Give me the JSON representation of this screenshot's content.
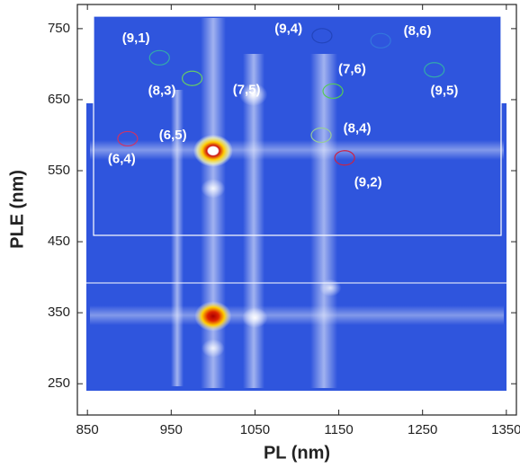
{
  "chart_data": {
    "type": "ple-map",
    "xlabel": "PL (nm)",
    "ylabel": "PLE (nm)",
    "xlim": [
      838,
      1362
    ],
    "ylim": [
      206,
      784
    ],
    "xticks": [
      850,
      950,
      1050,
      1150,
      1250,
      1350
    ],
    "yticks": [
      250,
      350,
      450,
      550,
      650,
      750
    ],
    "peaks": [
      {
        "x": 1000,
        "y": 578,
        "intensity": 1.0
      },
      {
        "x": 1048,
        "y": 657,
        "intensity": 0.55
      },
      {
        "x": 1000,
        "y": 345,
        "intensity": 0.9
      },
      {
        "x": 1050,
        "y": 343,
        "intensity": 0.45
      },
      {
        "x": 1000,
        "y": 525,
        "intensity": 0.4
      },
      {
        "x": 1140,
        "y": 385,
        "intensity": 0.3
      },
      {
        "x": 1000,
        "y": 300,
        "intensity": 0.35
      }
    ],
    "annotations": [
      {
        "label": "(9,1)",
        "x": 908,
        "y": 736,
        "marker": {
          "x": 936,
          "y": 709,
          "color": "#33aaaa"
        }
      },
      {
        "label": "(9,4)",
        "x": 1090,
        "y": 749,
        "marker": {
          "x": 1130,
          "y": 740,
          "color": "#2244bb"
        }
      },
      {
        "label": "(8,6)",
        "x": 1244,
        "y": 746,
        "marker": {
          "x": 1200,
          "y": 733,
          "color": "#3377dd"
        }
      },
      {
        "label": "(8,3)",
        "x": 939,
        "y": 662,
        "marker": {
          "x": 975,
          "y": 680,
          "color": "#66cc66"
        }
      },
      {
        "label": "(7,5)",
        "x": 1040,
        "y": 663
      },
      {
        "label": "(7,6)",
        "x": 1166,
        "y": 692,
        "marker": {
          "x": 1143,
          "y": 662,
          "color": "#55cc55"
        }
      },
      {
        "label": "(9,5)",
        "x": 1276,
        "y": 662,
        "marker": {
          "x": 1264,
          "y": 692,
          "color": "#33aaaa"
        }
      },
      {
        "label": "(8,4)",
        "x": 1172,
        "y": 609,
        "marker": {
          "x": 1129,
          "y": 600,
          "color": "#99cc99"
        }
      },
      {
        "label": "(6,5)",
        "x": 952,
        "y": 599
      },
      {
        "label": "(6,4)",
        "x": 891,
        "y": 566,
        "marker": {
          "x": 898,
          "y": 595,
          "color": "#cc3366"
        }
      },
      {
        "label": "(9,2)",
        "x": 1185,
        "y": 533,
        "marker": {
          "x": 1157,
          "y": 568,
          "color": "#cc2244"
        }
      }
    ]
  }
}
